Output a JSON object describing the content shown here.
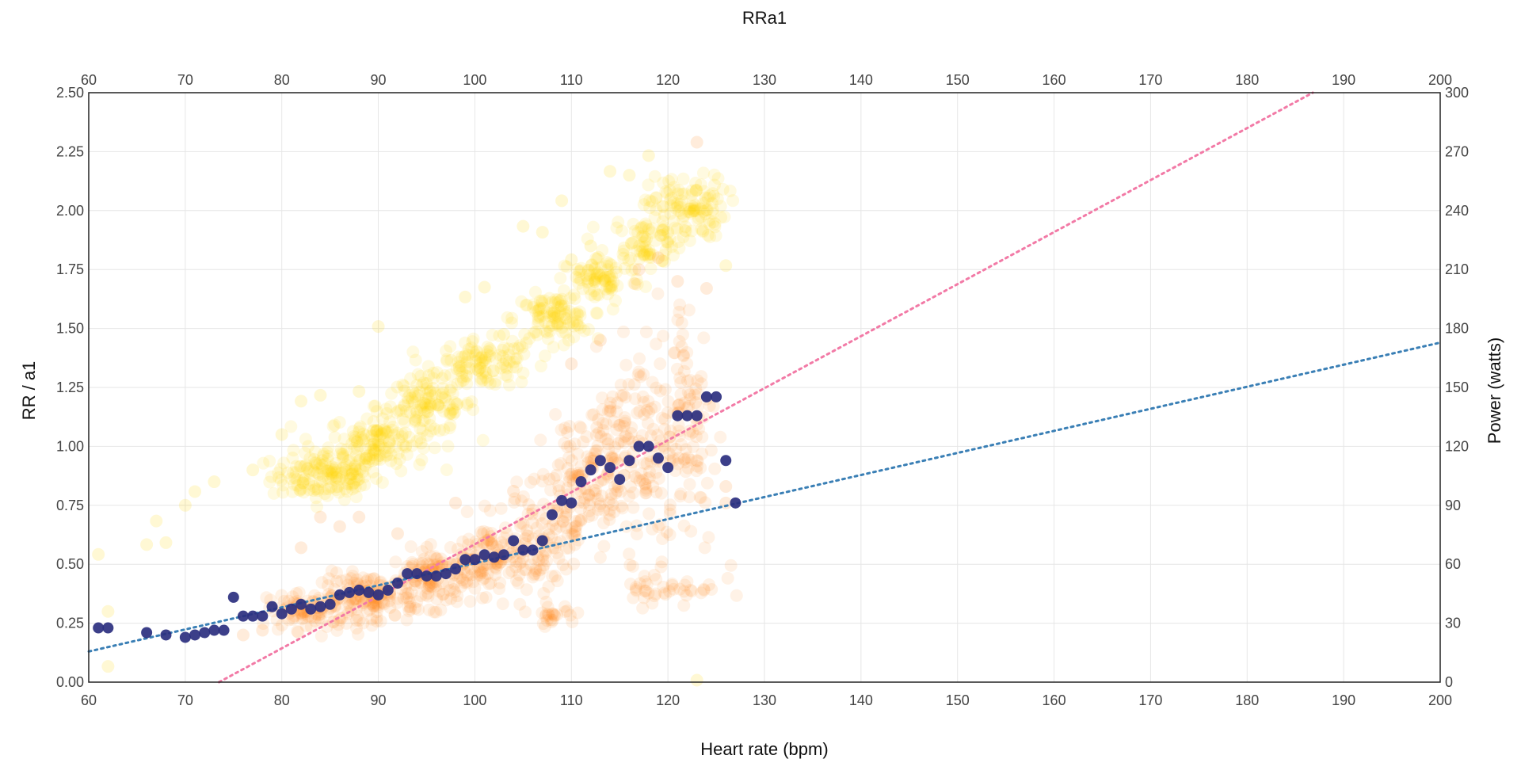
{
  "chart_data": {
    "type": "scatter",
    "title": "RRa1",
    "xlabel": "Heart rate (bpm)",
    "ylabel": "RR / a1",
    "y2label": "Power (watts)",
    "xlim": [
      60,
      200
    ],
    "ylim": [
      0,
      2.5
    ],
    "y2lim": [
      0,
      300
    ],
    "x_ticks": [
      "60",
      "70",
      "80",
      "90",
      "100",
      "110",
      "120",
      "130",
      "140",
      "150",
      "160",
      "170",
      "180",
      "190",
      "200"
    ],
    "y_ticks": [
      "0.00",
      "0.25",
      "0.50",
      "0.75",
      "1.00",
      "1.25",
      "1.50",
      "1.75",
      "2.00",
      "2.25",
      "2.50"
    ],
    "y2_ticks": [
      "0",
      "30",
      "60",
      "90",
      "120",
      "150",
      "180",
      "210",
      "240",
      "270",
      "300"
    ],
    "grid": true,
    "colors": {
      "power": "#ffd400",
      "rr": "#ff7f0e",
      "a1": "#2b2f7f",
      "power_trend": "#f27aa6",
      "a1_trend": "#3a7fb5",
      "grid": "#e6e6e6",
      "frame": "#222222"
    },
    "series": [
      {
        "axis": "y2",
        "style": "translucent-cloud",
        "clusters": [
          {
            "x": 84.5,
            "y": 105,
            "sx": 2.8,
            "sy": 6,
            "n": 150
          },
          {
            "x": 90,
            "y": 122,
            "sx": 2.6,
            "sy": 7,
            "n": 130
          },
          {
            "x": 95,
            "y": 141,
            "sx": 2.6,
            "sy": 7,
            "n": 110
          },
          {
            "x": 101,
            "y": 162,
            "sx": 2.6,
            "sy": 6,
            "n": 110
          },
          {
            "x": 108,
            "y": 185,
            "sx": 2.0,
            "sy": 6,
            "n": 100
          },
          {
            "x": 113,
            "y": 205,
            "sx": 2.2,
            "sy": 6,
            "n": 80
          },
          {
            "x": 117.5,
            "y": 224,
            "sx": 2.0,
            "sy": 7,
            "n": 80
          },
          {
            "x": 122,
            "y": 242,
            "sx": 2.0,
            "sy": 8,
            "n": 110
          }
        ],
        "scatter": [
          [
            61,
            65
          ],
          [
            62,
            36
          ],
          [
            62,
            8
          ],
          [
            66,
            70
          ],
          [
            67,
            82
          ],
          [
            68,
            71
          ],
          [
            70,
            90
          ],
          [
            71,
            97
          ],
          [
            73,
            102
          ],
          [
            77,
            108
          ],
          [
            80,
            126
          ],
          [
            82,
            143
          ],
          [
            84,
            146
          ],
          [
            88,
            148
          ],
          [
            90,
            181
          ],
          [
            95,
            152
          ],
          [
            99,
            196
          ],
          [
            101,
            201
          ],
          [
            103,
            177
          ],
          [
            105,
            232
          ],
          [
            107,
            229
          ],
          [
            109,
            245
          ],
          [
            110,
            215
          ],
          [
            112,
            222
          ],
          [
            114,
            260
          ],
          [
            116,
            258
          ],
          [
            118,
            268
          ],
          [
            120,
            229
          ],
          [
            126,
            212
          ],
          [
            123,
            1
          ]
        ]
      },
      {
        "axis": "y",
        "style": "translucent-cloud",
        "clusters": [
          {
            "x": 83,
            "y": 0.3,
            "sx": 2.2,
            "sy": 0.04,
            "n": 90
          },
          {
            "x": 89,
            "y": 0.36,
            "sx": 2.4,
            "sy": 0.05,
            "n": 140
          },
          {
            "x": 96,
            "y": 0.44,
            "sx": 2.4,
            "sy": 0.06,
            "n": 140
          },
          {
            "x": 102,
            "y": 0.53,
            "sx": 2.4,
            "sy": 0.08,
            "n": 110
          },
          {
            "x": 107,
            "y": 0.6,
            "sx": 1.8,
            "sy": 0.1,
            "n": 80
          },
          {
            "x": 110,
            "y": 0.85,
            "sx": 1.8,
            "sy": 0.15,
            "n": 80
          },
          {
            "x": 113,
            "y": 0.88,
            "sx": 1.8,
            "sy": 0.16,
            "n": 90
          },
          {
            "x": 117,
            "y": 1.02,
            "sx": 1.8,
            "sy": 0.22,
            "n": 110
          },
          {
            "x": 122,
            "y": 1.1,
            "sx": 1.6,
            "sy": 0.28,
            "n": 120
          },
          {
            "x": 120,
            "y": 0.4,
            "sx": 2.6,
            "sy": 0.04,
            "n": 40
          },
          {
            "x": 108,
            "y": 0.29,
            "sx": 1.2,
            "sy": 0.02,
            "n": 25
          }
        ],
        "scatter": [
          [
            76,
            0.2
          ],
          [
            78,
            0.22
          ],
          [
            82,
            0.57
          ],
          [
            84,
            0.7
          ],
          [
            86,
            0.66
          ],
          [
            88,
            0.7
          ],
          [
            92,
            0.63
          ],
          [
            98,
            0.76
          ],
          [
            104,
            0.81
          ],
          [
            106,
            0.73
          ],
          [
            110,
            1.35
          ],
          [
            113,
            1.45
          ],
          [
            117,
            1.75
          ],
          [
            119,
            1.8
          ],
          [
            121,
            1.7
          ],
          [
            123,
            2.29
          ],
          [
            124,
            1.67
          ],
          [
            126,
            0.83
          ],
          [
            126,
            0.76
          ]
        ]
      },
      {
        "axis": "y",
        "style": "solid-dots",
        "points": [
          [
            61,
            0.23
          ],
          [
            62,
            0.23
          ],
          [
            66,
            0.21
          ],
          [
            68,
            0.2
          ],
          [
            70,
            0.19
          ],
          [
            71,
            0.2
          ],
          [
            72,
            0.21
          ],
          [
            73,
            0.22
          ],
          [
            74,
            0.22
          ],
          [
            75,
            0.36
          ],
          [
            76,
            0.28
          ],
          [
            77,
            0.28
          ],
          [
            78,
            0.28
          ],
          [
            79,
            0.32
          ],
          [
            80,
            0.29
          ],
          [
            81,
            0.31
          ],
          [
            82,
            0.33
          ],
          [
            83,
            0.31
          ],
          [
            84,
            0.32
          ],
          [
            85,
            0.33
          ],
          [
            86,
            0.37
          ],
          [
            87,
            0.38
          ],
          [
            88,
            0.39
          ],
          [
            89,
            0.38
          ],
          [
            90,
            0.37
          ],
          [
            91,
            0.39
          ],
          [
            92,
            0.42
          ],
          [
            93,
            0.46
          ],
          [
            94,
            0.46
          ],
          [
            95,
            0.45
          ],
          [
            96,
            0.45
          ],
          [
            97,
            0.46
          ],
          [
            98,
            0.48
          ],
          [
            99,
            0.52
          ],
          [
            100,
            0.52
          ],
          [
            101,
            0.54
          ],
          [
            102,
            0.53
          ],
          [
            103,
            0.54
          ],
          [
            104,
            0.6
          ],
          [
            105,
            0.56
          ],
          [
            106,
            0.56
          ],
          [
            107,
            0.6
          ],
          [
            108,
            0.71
          ],
          [
            109,
            0.77
          ],
          [
            110,
            0.76
          ],
          [
            111,
            0.85
          ],
          [
            112,
            0.9
          ],
          [
            113,
            0.94
          ],
          [
            114,
            0.91
          ],
          [
            115,
            0.86
          ],
          [
            116,
            0.94
          ],
          [
            117,
            1.0
          ],
          [
            118,
            1.0
          ],
          [
            119,
            0.95
          ],
          [
            120,
            0.91
          ],
          [
            121,
            1.13
          ],
          [
            122,
            1.13
          ],
          [
            123,
            1.13
          ],
          [
            124,
            1.21
          ],
          [
            125,
            1.21
          ],
          [
            126,
            0.94
          ],
          [
            127,
            0.76
          ]
        ]
      },
      {
        "axis": "y",
        "style": "dotted-line",
        "color_key": "power_trend",
        "points": [
          [
            73.5,
            0
          ],
          [
            186.8,
            2.5
          ]
        ]
      },
      {
        "axis": "y",
        "style": "dotted-line",
        "color_key": "a1_trend",
        "points": [
          [
            60,
            0.13
          ],
          [
            200,
            1.44
          ]
        ]
      }
    ]
  }
}
